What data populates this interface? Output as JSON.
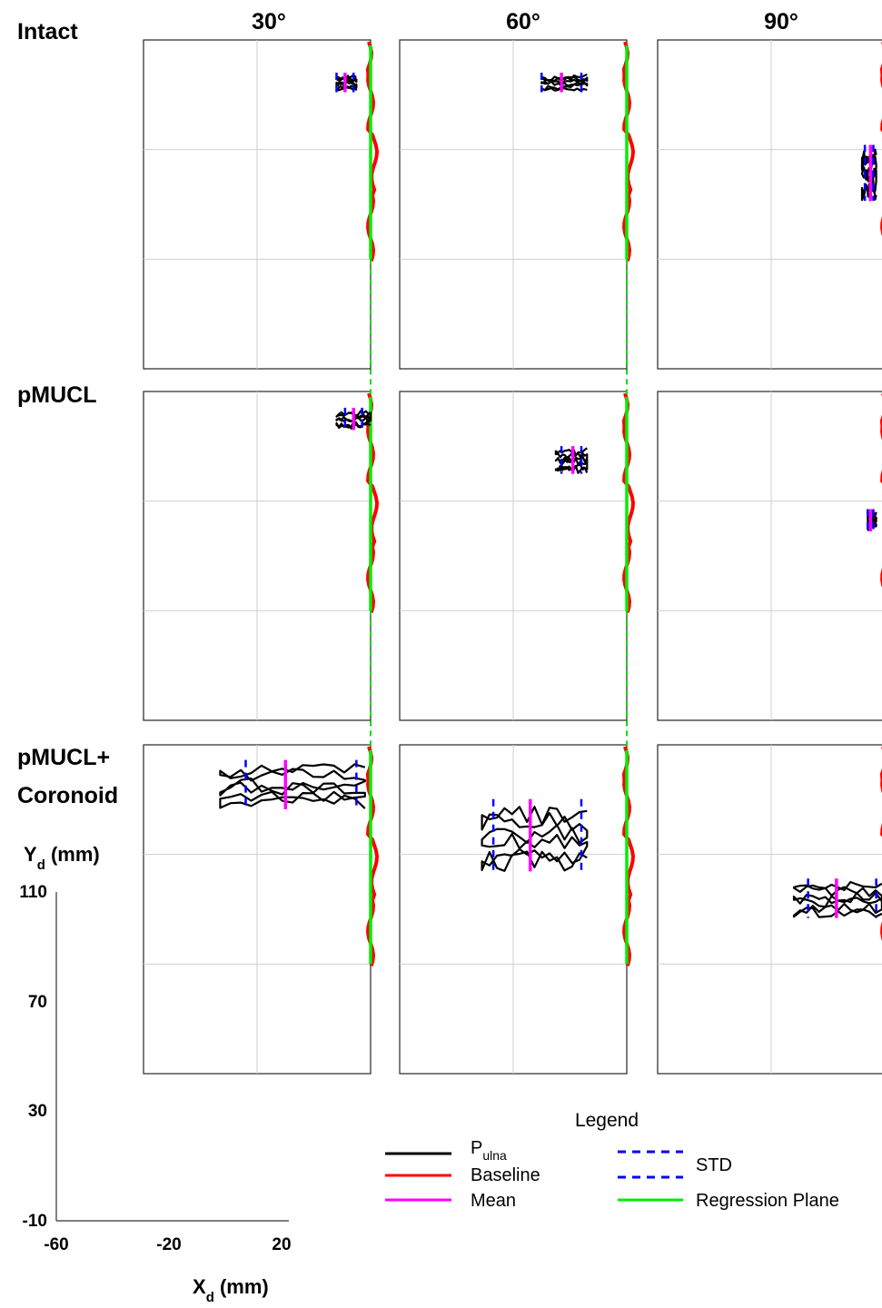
{
  "chart_data": {
    "type": "line",
    "columns": [
      "30°",
      "60°",
      "90°"
    ],
    "rows": [
      "Intact",
      "pMUCL",
      "pMUCL+ Coronoid"
    ],
    "x_axis": {
      "label_main": "X",
      "label_sub": "d",
      "label_unit": " (mm)",
      "ticks": [
        "-60",
        "-20",
        "20"
      ],
      "tick_values": [
        -60,
        -20,
        20
      ],
      "range": [
        -60,
        20
      ]
    },
    "y_axis": {
      "label_main": "Y",
      "label_sub": "d",
      "label_unit": " (mm)",
      "ticks": [
        "110",
        "70",
        "30",
        "-10"
      ],
      "tick_values": [
        110,
        70,
        30,
        -10
      ],
      "range": [
        -10,
        110
      ]
    },
    "grid": true,
    "legend": {
      "title": "Legend",
      "placement": "bottom-right",
      "entries": [
        {
          "name_main": "P",
          "name_sub": "ulna",
          "color": "#000000",
          "style": "solid"
        },
        {
          "name": "Baseline",
          "color": "#ff0000",
          "style": "solid"
        },
        {
          "name": "Mean",
          "color": "#ff00ff",
          "style": "solid"
        },
        {
          "name": "STD",
          "color": "#0000ff",
          "style": "dashed"
        },
        {
          "name": "Regression Plane",
          "color": "#00ee00",
          "style": "solid"
        }
      ]
    },
    "series": [
      {
        "name": "Baseline",
        "x": [
          20,
          20,
          20,
          20
        ],
        "y": [
          110,
          90,
          70,
          30
        ]
      },
      {
        "name": "Regression Plane",
        "x": [
          20,
          20
        ],
        "y": [
          110,
          30
        ]
      }
    ],
    "panels": [
      {
        "row": "Intact",
        "col": "30°",
        "pulna_y": [
          92,
          97
        ],
        "pulna_x": [
          8,
          15
        ],
        "mean_x": 11,
        "std_x": [
          8,
          14
        ]
      },
      {
        "row": "Intact",
        "col": "60°",
        "pulna_y": [
          92,
          97
        ],
        "pulna_x": [
          -10,
          6
        ],
        "mean_x": -3,
        "std_x": [
          -10,
          4
        ]
      },
      {
        "row": "Intact",
        "col": "90°",
        "pulna_y": [
          53,
          70
        ],
        "pulna_x": [
          12,
          17
        ],
        "mean_x": 15,
        "std_x": [
          13,
          16
        ]
      },
      {
        "row": "pMUCL",
        "col": "30°",
        "pulna_y": [
          97,
          103
        ],
        "pulna_x": [
          8,
          20
        ],
        "mean_x": 14,
        "std_x": [
          11,
          17
        ]
      },
      {
        "row": "pMUCL",
        "col": "60°",
        "pulna_y": [
          81,
          89
        ],
        "pulna_x": [
          -5,
          6
        ],
        "mean_x": 1,
        "std_x": [
          -3,
          4
        ]
      },
      {
        "row": "pMUCL",
        "col": "90°",
        "pulna_y": [
          60,
          66
        ],
        "pulna_x": [
          14,
          17
        ],
        "mean_x": 15,
        "std_x": [
          14,
          16
        ]
      },
      {
        "row": "pMUCL+ Coronoid",
        "col": "30°",
        "pulna_y": [
          88,
          103
        ],
        "pulna_x": [
          -33,
          18
        ],
        "mean_x": -10,
        "std_x": [
          -24,
          15
        ]
      },
      {
        "row": "pMUCL+ Coronoid",
        "col": "60°",
        "pulna_y": [
          66,
          88
        ],
        "pulna_x": [
          -31,
          6
        ],
        "mean_x": -14,
        "std_x": [
          -27,
          4
        ]
      },
      {
        "row": "pMUCL+ Coronoid",
        "col": "90°",
        "pulna_y": [
          48,
          60
        ],
        "pulna_x": [
          -12,
          19
        ],
        "mean_x": 3,
        "std_x": [
          -7,
          17
        ]
      }
    ]
  }
}
